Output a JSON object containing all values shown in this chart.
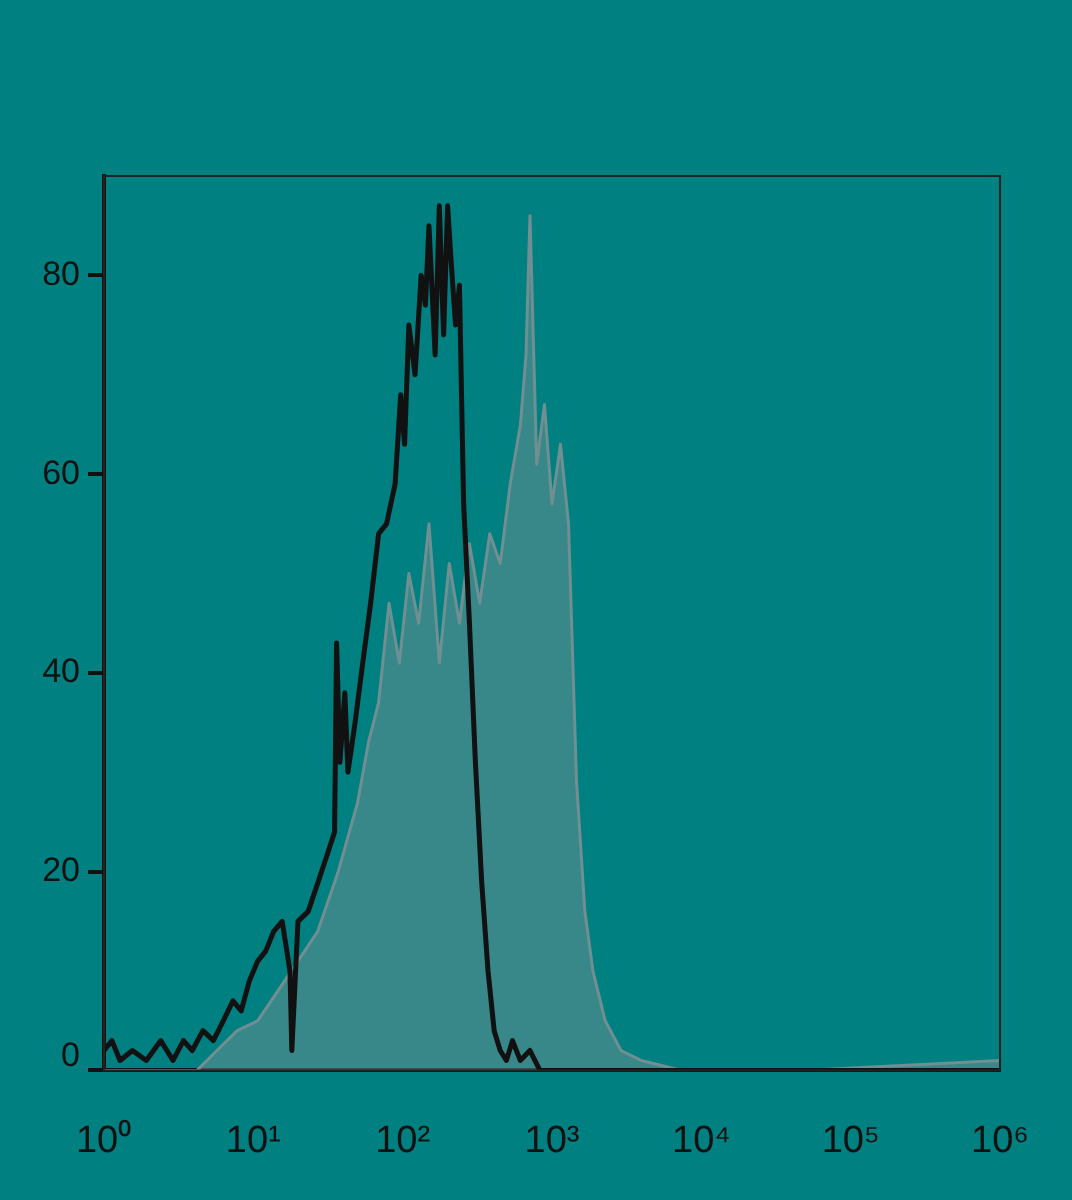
{
  "chart_data": {
    "type": "line",
    "log": "x",
    "xlim": [
      1,
      1000000
    ],
    "ylim": [
      0,
      90
    ],
    "xticks": [
      {
        "value": 1,
        "label": "10⁰"
      },
      {
        "value": 10,
        "label": "10¹"
      },
      {
        "value": 100,
        "label": "10²"
      },
      {
        "value": 1000,
        "label": "10³"
      },
      {
        "value": 10000,
        "label": "10⁴"
      },
      {
        "value": 100000,
        "label": "10⁵"
      },
      {
        "value": 1000000,
        "label": "10⁶"
      }
    ],
    "yticks": [
      0,
      20,
      40,
      60,
      80
    ],
    "grid": false,
    "legend": false,
    "marker": "none",
    "series": [
      {
        "type": "area",
        "color": "#6f8f92",
        "x": [
          1,
          4.2,
          5.7,
          7.8,
          10.7,
          14.6,
          19.9,
          27,
          37,
          50,
          59,
          69,
          81,
          95,
          110,
          128,
          150,
          176,
          205,
          240,
          280,
          328,
          383,
          450,
          525,
          615,
          670,
          712,
          790,
          890,
          1000,
          1140,
          1290,
          1460,
          1660,
          1880,
          2270,
          2900,
          3950,
          7400,
          48000,
          1000000
        ],
        "values": [
          0,
          0,
          2,
          4,
          5,
          8,
          11,
          14,
          20,
          27,
          33,
          37,
          47,
          41,
          50,
          45,
          55,
          41,
          51,
          45,
          53,
          47,
          54,
          51,
          59,
          65,
          72,
          86,
          61,
          67,
          57,
          63,
          55,
          29,
          16,
          10,
          5,
          2,
          1,
          0,
          0,
          1
        ]
      },
      {
        "type": "line",
        "color": "#111111",
        "x": [
          1,
          1.13,
          1.28,
          1.55,
          1.92,
          2.4,
          2.9,
          3.4,
          3.9,
          4.6,
          5.4,
          6.3,
          7.3,
          8.3,
          9.4,
          10.7,
          12.1,
          13.7,
          15.6,
          17.6,
          18.1,
          19.9,
          23.3,
          27.2,
          31.7,
          35,
          36.1,
          38,
          41,
          43,
          48,
          54,
          61,
          69,
          78,
          89,
          97,
          103,
          110,
          121,
          133,
          142,
          150,
          165,
          176,
          188,
          200,
          212,
          226,
          240,
          256,
          280,
          307,
          338,
          373,
          410,
          450,
          495,
          544,
          613,
          712,
          830,
          1080,
          1560,
          5400,
          1000000
        ],
        "values": [
          2,
          3,
          1,
          2,
          1,
          3,
          1,
          3,
          2,
          4,
          3,
          5,
          7,
          6,
          9,
          11,
          12,
          14,
          15,
          10,
          2,
          15,
          16,
          19,
          22,
          24,
          43,
          31,
          38,
          30,
          35,
          41,
          47,
          54,
          55,
          59,
          68,
          63,
          75,
          70,
          80,
          77,
          85,
          72,
          87,
          74,
          87,
          81,
          75,
          79,
          57,
          45,
          31,
          19,
          10,
          4,
          2,
          1,
          3,
          1,
          2,
          0,
          0,
          0,
          0,
          0
        ]
      }
    ]
  }
}
